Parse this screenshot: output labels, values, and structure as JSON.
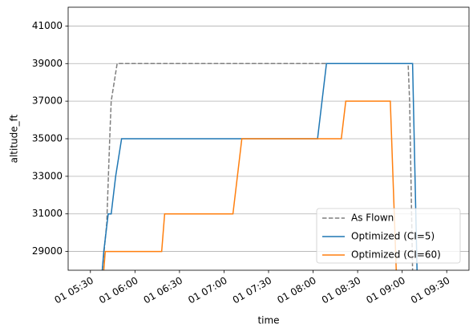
{
  "chart_data": {
    "type": "line",
    "xlabel": "time",
    "ylabel": "altitude_ft",
    "xlim": [
      "01 05:15",
      "01 09:45"
    ],
    "xticks": [
      "01 05:30",
      "01 06:00",
      "01 06:30",
      "01 07:00",
      "01 07:30",
      "01 08:00",
      "01 08:30",
      "01 09:00",
      "01 09:30"
    ],
    "ylim": [
      28000,
      42000
    ],
    "yticks": [
      29000,
      31000,
      33000,
      35000,
      37000,
      39000,
      41000
    ],
    "grid": "y",
    "legend": "lower right",
    "series": [
      {
        "name": "As Flown",
        "color": "#7f7f7f",
        "linestyle": "dashed",
        "x": [
          "01 05:38",
          "01 05:41",
          "01 05:43",
          "01 05:44",
          "01 05:46",
          "01 05:48",
          "01 06:30",
          "01 07:30",
          "01 08:30",
          "01 09:04",
          "01 09:05",
          "01 09:07"
        ],
        "values": [
          28000,
          30500,
          35000,
          37000,
          38000,
          39000,
          39000,
          39000,
          39000,
          39000,
          37000,
          28000
        ]
      },
      {
        "name": "Optimized (CI=5)",
        "color": "#1f77b4",
        "linestyle": "solid",
        "x": [
          "01 05:38",
          "01 05:39",
          "01 05:42",
          "01 05:44",
          "01 05:47",
          "01 05:51",
          "01 08:03",
          "01 08:09",
          "01 09:07",
          "01 09:10"
        ],
        "values": [
          28000,
          29000,
          31000,
          31000,
          33000,
          35000,
          35000,
          39000,
          39000,
          28000
        ]
      },
      {
        "name": "Optimized (CI=60)",
        "color": "#ff7f0e",
        "linestyle": "solid",
        "x": [
          "01 05:39",
          "01 05:40",
          "01 06:18",
          "01 06:20",
          "01 07:06",
          "01 07:12",
          "01 08:19",
          "01 08:22",
          "01 08:52",
          "01 08:56"
        ],
        "values": [
          28000,
          29000,
          29000,
          31000,
          31000,
          35000,
          35000,
          37000,
          37000,
          28000
        ]
      }
    ]
  }
}
